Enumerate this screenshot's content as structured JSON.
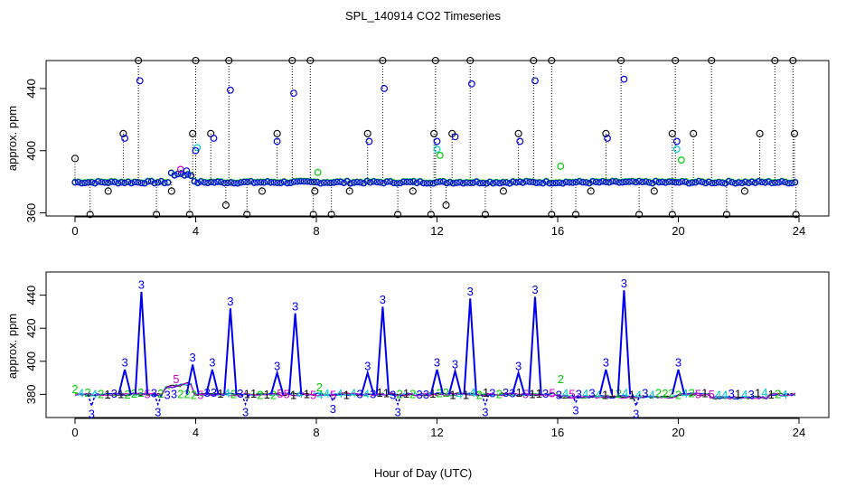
{
  "title": "SPL_140914  CO2 Timeseries",
  "xlabel": "Hour of Day (UTC)",
  "chart_data": [
    {
      "type": "scatter",
      "ylabel": "approx. ppm",
      "xlim": [
        0,
        24
      ],
      "ylim": [
        358,
        458
      ],
      "xticks": [
        0,
        4,
        8,
        12,
        16,
        20,
        24
      ],
      "xtick_labels": [
        "0",
        "4",
        "8",
        "12",
        "16",
        "20",
        "24"
      ],
      "yticks": [
        360,
        400,
        440
      ],
      "ytick_labels": [
        "360",
        "400",
        "440"
      ],
      "max_points": [
        {
          "x": 0.0,
          "y": 395
        },
        {
          "x": 1.6,
          "y": 411
        },
        {
          "x": 2.1,
          "y": 458
        },
        {
          "x": 3.9,
          "y": 411
        },
        {
          "x": 4.0,
          "y": 458
        },
        {
          "x": 4.5,
          "y": 411
        },
        {
          "x": 5.1,
          "y": 458
        },
        {
          "x": 6.7,
          "y": 411
        },
        {
          "x": 7.2,
          "y": 458
        },
        {
          "x": 7.8,
          "y": 458
        },
        {
          "x": 9.7,
          "y": 411
        },
        {
          "x": 10.2,
          "y": 458
        },
        {
          "x": 11.9,
          "y": 411
        },
        {
          "x": 11.95,
          "y": 458
        },
        {
          "x": 12.5,
          "y": 411
        },
        {
          "x": 13.1,
          "y": 458
        },
        {
          "x": 14.7,
          "y": 411
        },
        {
          "x": 15.2,
          "y": 458
        },
        {
          "x": 15.8,
          "y": 458
        },
        {
          "x": 17.6,
          "y": 411
        },
        {
          "x": 18.1,
          "y": 458
        },
        {
          "x": 19.8,
          "y": 411
        },
        {
          "x": 19.9,
          "y": 458
        },
        {
          "x": 20.5,
          "y": 411
        },
        {
          "x": 21.1,
          "y": 458
        },
        {
          "x": 22.7,
          "y": 411
        },
        {
          "x": 23.2,
          "y": 458
        },
        {
          "x": 23.8,
          "y": 458
        },
        {
          "x": 23.85,
          "y": 411
        }
      ],
      "min_points": [
        {
          "x": 0.5,
          "y": 359
        },
        {
          "x": 1.1,
          "y": 374
        },
        {
          "x": 2.7,
          "y": 359
        },
        {
          "x": 3.2,
          "y": 374
        },
        {
          "x": 3.8,
          "y": 359
        },
        {
          "x": 5.0,
          "y": 365
        },
        {
          "x": 5.7,
          "y": 359
        },
        {
          "x": 6.2,
          "y": 374
        },
        {
          "x": 7.9,
          "y": 359
        },
        {
          "x": 7.95,
          "y": 374
        },
        {
          "x": 8.5,
          "y": 359
        },
        {
          "x": 9.1,
          "y": 374
        },
        {
          "x": 10.7,
          "y": 359
        },
        {
          "x": 11.2,
          "y": 374
        },
        {
          "x": 11.8,
          "y": 359
        },
        {
          "x": 12.3,
          "y": 365
        },
        {
          "x": 13.6,
          "y": 359
        },
        {
          "x": 14.2,
          "y": 374
        },
        {
          "x": 15.8,
          "y": 359
        },
        {
          "x": 16.6,
          "y": 359
        },
        {
          "x": 17.1,
          "y": 374
        },
        {
          "x": 18.7,
          "y": 359
        },
        {
          "x": 19.2,
          "y": 374
        },
        {
          "x": 19.8,
          "y": 359
        },
        {
          "x": 21.6,
          "y": 359
        },
        {
          "x": 22.2,
          "y": 374
        },
        {
          "x": 23.9,
          "y": 359
        }
      ],
      "spikes": [
        {
          "x": 1.65,
          "y": 408
        },
        {
          "x": 2.15,
          "y": 445
        },
        {
          "x": 4.6,
          "y": 408
        },
        {
          "x": 5.15,
          "y": 439
        },
        {
          "x": 6.7,
          "y": 406
        },
        {
          "x": 7.25,
          "y": 437
        },
        {
          "x": 9.75,
          "y": 406
        },
        {
          "x": 10.25,
          "y": 440
        },
        {
          "x": 12.0,
          "y": 406
        },
        {
          "x": 12.6,
          "y": 409
        },
        {
          "x": 13.15,
          "y": 443
        },
        {
          "x": 14.75,
          "y": 406
        },
        {
          "x": 15.25,
          "y": 445
        },
        {
          "x": 17.65,
          "y": 408
        },
        {
          "x": 18.2,
          "y": 446
        },
        {
          "x": 19.95,
          "y": 406
        }
      ],
      "baseline": 380
    },
    {
      "type": "line",
      "ylabel": "approx. ppm",
      "xlim": [
        0,
        24
      ],
      "ylim": [
        366,
        454
      ],
      "xticks": [
        0,
        4,
        8,
        12,
        16,
        20,
        24
      ],
      "xtick_labels": [
        "0",
        "4",
        "8",
        "12",
        "16",
        "20",
        "24"
      ],
      "yticks": [
        380,
        400,
        420,
        440
      ],
      "ytick_labels": [
        "380",
        "400",
        "420",
        "440"
      ],
      "series": [
        {
          "name": "1",
          "color": "#000000"
        },
        {
          "name": "2",
          "color": "#00cc00"
        },
        {
          "name": "3",
          "color": "#0000ee"
        },
        {
          "name": "4",
          "color": "#00cccc"
        },
        {
          "name": "5",
          "color": "#cc00cc"
        }
      ],
      "blue_peaks": [
        {
          "x": 1.65,
          "y": 399
        },
        {
          "x": 2.2,
          "y": 446
        },
        {
          "x": 3.9,
          "y": 402
        },
        {
          "x": 4.55,
          "y": 399
        },
        {
          "x": 5.15,
          "y": 436
        },
        {
          "x": 6.7,
          "y": 397
        },
        {
          "x": 7.3,
          "y": 433
        },
        {
          "x": 9.7,
          "y": 397
        },
        {
          "x": 10.2,
          "y": 437
        },
        {
          "x": 12.0,
          "y": 399
        },
        {
          "x": 12.6,
          "y": 398
        },
        {
          "x": 13.1,
          "y": 442
        },
        {
          "x": 14.7,
          "y": 397
        },
        {
          "x": 15.25,
          "y": 443
        },
        {
          "x": 17.6,
          "y": 399
        },
        {
          "x": 18.2,
          "y": 447
        },
        {
          "x": 20.0,
          "y": 399
        }
      ],
      "blue_dips": [
        {
          "x": 0.55,
          "y": 368
        },
        {
          "x": 2.75,
          "y": 369
        },
        {
          "x": 5.65,
          "y": 369
        },
        {
          "x": 8.55,
          "y": 371
        },
        {
          "x": 10.7,
          "y": 369
        },
        {
          "x": 13.6,
          "y": 369
        },
        {
          "x": 16.6,
          "y": 370
        },
        {
          "x": 18.6,
          "y": 368
        }
      ],
      "green_labels": [
        {
          "x": 0.0,
          "y": 383
        },
        {
          "x": 8.1,
          "y": 384
        },
        {
          "x": 16.1,
          "y": 389
        }
      ],
      "magenta_labels": [
        {
          "x": 3.35,
          "y": 389
        }
      ],
      "baseline": 380
    }
  ]
}
